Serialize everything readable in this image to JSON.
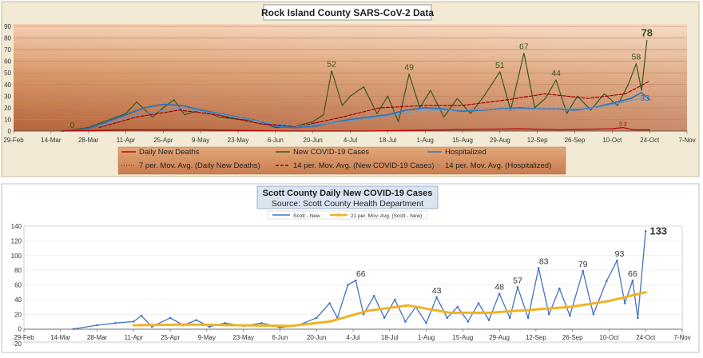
{
  "chart_data": [
    {
      "type": "line",
      "title": "Rock Island County SARS-CoV-2 Data",
      "x_tick_labels": [
        "29-Feb",
        "14-Mar",
        "28-Mar",
        "11-Apr",
        "25-Apr",
        "9-May",
        "23-May",
        "6-Jun",
        "20-Jun",
        "4-Jul",
        "18-Jul",
        "1-Aug",
        "15-Aug",
        "29-Aug",
        "12-Sep",
        "26-Sep",
        "10-Oct",
        "24-Oct",
        "7-Nov"
      ],
      "x_range": [
        "2020-02-29",
        "2020-11-07"
      ],
      "ylim": [
        0,
        90
      ],
      "y_ticks": [
        0,
        10,
        20,
        30,
        40,
        50,
        60,
        70,
        80,
        90
      ],
      "grid": true,
      "legend_position": "bottom",
      "legend": [
        {
          "label": "Daily New Deaths",
          "style": "solid",
          "color": "#c00000"
        },
        {
          "label": "New COVID-19 Cases",
          "style": "solid",
          "color": "#375623"
        },
        {
          "label": "Hospitalized",
          "style": "solid",
          "color": "#2e75b6"
        },
        {
          "label": "7 per. Mov. Avg. (Daily New Deaths)",
          "style": "dotted",
          "color": "#7f3f00"
        },
        {
          "label": "14 per. Mov. Avg. (New COVID-19 Cases)",
          "style": "dashed",
          "color": "#a00000"
        },
        {
          "label": "14 per. Mov. Avg. (Hospitalized)",
          "style": "dashed",
          "color": "#5b9bd5"
        }
      ],
      "annotations": [
        {
          "x": "2020-03-22",
          "y": 0,
          "text": "0"
        },
        {
          "x": "2020-06-27",
          "y": 52,
          "text": "52"
        },
        {
          "x": "2020-07-26",
          "y": 49,
          "text": "49"
        },
        {
          "x": "2020-08-29",
          "y": 51,
          "text": "51"
        },
        {
          "x": "2020-09-07",
          "y": 67,
          "text": "67"
        },
        {
          "x": "2020-09-19",
          "y": 44,
          "text": "44"
        },
        {
          "x": "2020-10-19",
          "y": 58,
          "text": "58"
        },
        {
          "x": "2020-10-23",
          "y": 78,
          "text": "78"
        },
        {
          "x": "2020-10-21",
          "y": 33,
          "text": "33"
        },
        {
          "x": "2020-10-14",
          "y": 3,
          "text": "3 3"
        }
      ],
      "series": [
        {
          "name": "New COVID-19 Cases",
          "points": [
            [
              "2020-03-18",
              0
            ],
            [
              "2020-03-28",
              3
            ],
            [
              "2020-04-04",
              9
            ],
            [
              "2020-04-11",
              15
            ],
            [
              "2020-04-15",
              25
            ],
            [
              "2020-04-21",
              12
            ],
            [
              "2020-04-25",
              20
            ],
            [
              "2020-04-29",
              27
            ],
            [
              "2020-05-03",
              14
            ],
            [
              "2020-05-09",
              18
            ],
            [
              "2020-05-16",
              12
            ],
            [
              "2020-05-23",
              10
            ],
            [
              "2020-05-30",
              9
            ],
            [
              "2020-06-06",
              3
            ],
            [
              "2020-06-13",
              4
            ],
            [
              "2020-06-20",
              8
            ],
            [
              "2020-06-24",
              14
            ],
            [
              "2020-06-27",
              52
            ],
            [
              "2020-07-01",
              22
            ],
            [
              "2020-07-04",
              30
            ],
            [
              "2020-07-09",
              38
            ],
            [
              "2020-07-14",
              15
            ],
            [
              "2020-07-18",
              30
            ],
            [
              "2020-07-22",
              8
            ],
            [
              "2020-07-26",
              49
            ],
            [
              "2020-07-30",
              20
            ],
            [
              "2020-08-03",
              35
            ],
            [
              "2020-08-08",
              12
            ],
            [
              "2020-08-13",
              28
            ],
            [
              "2020-08-18",
              15
            ],
            [
              "2020-08-23",
              30
            ],
            [
              "2020-08-29",
              51
            ],
            [
              "2020-09-02",
              18
            ],
            [
              "2020-09-07",
              67
            ],
            [
              "2020-09-11",
              20
            ],
            [
              "2020-09-15",
              28
            ],
            [
              "2020-09-19",
              44
            ],
            [
              "2020-09-23",
              15
            ],
            [
              "2020-09-27",
              30
            ],
            [
              "2020-10-02",
              18
            ],
            [
              "2020-10-07",
              32
            ],
            [
              "2020-10-12",
              22
            ],
            [
              "2020-10-16",
              40
            ],
            [
              "2020-10-19",
              58
            ],
            [
              "2020-10-21",
              35
            ],
            [
              "2020-10-23",
              78
            ]
          ]
        },
        {
          "name": "Hospitalized",
          "points": [
            [
              "2020-03-18",
              0
            ],
            [
              "2020-03-28",
              2
            ],
            [
              "2020-04-04",
              8
            ],
            [
              "2020-04-11",
              14
            ],
            [
              "2020-04-18",
              20
            ],
            [
              "2020-04-25",
              23
            ],
            [
              "2020-05-02",
              22
            ],
            [
              "2020-05-09",
              18
            ],
            [
              "2020-05-16",
              15
            ],
            [
              "2020-05-23",
              12
            ],
            [
              "2020-05-30",
              9
            ],
            [
              "2020-06-06",
              4
            ],
            [
              "2020-06-13",
              3
            ],
            [
              "2020-06-20",
              4
            ],
            [
              "2020-06-27",
              7
            ],
            [
              "2020-07-04",
              10
            ],
            [
              "2020-07-11",
              12
            ],
            [
              "2020-07-18",
              14
            ],
            [
              "2020-07-25",
              18
            ],
            [
              "2020-08-01",
              20
            ],
            [
              "2020-08-08",
              19
            ],
            [
              "2020-08-15",
              17
            ],
            [
              "2020-08-22",
              18
            ],
            [
              "2020-08-29",
              19
            ],
            [
              "2020-09-05",
              20
            ],
            [
              "2020-09-12",
              19
            ],
            [
              "2020-09-19",
              19
            ],
            [
              "2020-09-26",
              18
            ],
            [
              "2020-10-03",
              20
            ],
            [
              "2020-10-10",
              24
            ],
            [
              "2020-10-17",
              28
            ],
            [
              "2020-10-21",
              33
            ],
            [
              "2020-10-24",
              27
            ]
          ]
        },
        {
          "name": "Daily New Deaths",
          "points": [
            [
              "2020-03-18",
              0
            ],
            [
              "2020-04-10",
              1
            ],
            [
              "2020-05-10",
              1
            ],
            [
              "2020-06-10",
              0
            ],
            [
              "2020-07-10",
              0
            ],
            [
              "2020-08-10",
              1
            ],
            [
              "2020-09-05",
              2
            ],
            [
              "2020-09-20",
              1
            ],
            [
              "2020-10-10",
              2
            ],
            [
              "2020-10-14",
              3
            ],
            [
              "2020-10-18",
              1
            ],
            [
              "2020-10-24",
              1
            ]
          ]
        },
        {
          "name": "14 per. Mov. Avg. (New COVID-19 Cases)",
          "points": [
            [
              "2020-04-01",
              3
            ],
            [
              "2020-04-15",
              12
            ],
            [
              "2020-05-01",
              18
            ],
            [
              "2020-05-15",
              14
            ],
            [
              "2020-06-01",
              6
            ],
            [
              "2020-06-15",
              4
            ],
            [
              "2020-07-01",
              12
            ],
            [
              "2020-07-15",
              20
            ],
            [
              "2020-08-01",
              22
            ],
            [
              "2020-08-15",
              22
            ],
            [
              "2020-09-01",
              27
            ],
            [
              "2020-09-15",
              32
            ],
            [
              "2020-10-01",
              28
            ],
            [
              "2020-10-15",
              32
            ],
            [
              "2020-10-24",
              43
            ]
          ]
        },
        {
          "name": "14 per. Mov. Avg. (Hospitalized)",
          "points": [
            [
              "2020-04-01",
              4
            ],
            [
              "2020-04-15",
              14
            ],
            [
              "2020-05-01",
              20
            ],
            [
              "2020-05-15",
              15
            ],
            [
              "2020-06-01",
              8
            ],
            [
              "2020-06-15",
              4
            ],
            [
              "2020-07-01",
              8
            ],
            [
              "2020-07-15",
              12
            ],
            [
              "2020-08-01",
              18
            ],
            [
              "2020-08-15",
              18
            ],
            [
              "2020-09-01",
              19
            ],
            [
              "2020-09-15",
              19
            ],
            [
              "2020-10-01",
              19
            ],
            [
              "2020-10-15",
              25
            ],
            [
              "2020-10-24",
              30
            ]
          ]
        }
      ]
    },
    {
      "type": "line",
      "title": "Scott County Daily New COVID-19 Cases",
      "subtitle": "Source: Scott County Health Department",
      "x_tick_labels": [
        "29-Feb",
        "14-Mar",
        "28-Mar",
        "11-Apr",
        "25-Apr",
        "9-May",
        "23-May",
        "6-Jun",
        "20-Jun",
        "4-Jul",
        "18-Jul",
        "1-Aug",
        "15-Aug",
        "29-Aug",
        "12-Sep",
        "26-Sep",
        "10-Oct",
        "24-Oct",
        "7-Nov"
      ],
      "x_range": [
        "2020-02-29",
        "2020-11-07"
      ],
      "ylim": [
        -20,
        140
      ],
      "y_ticks": [
        -20,
        0,
        20,
        40,
        60,
        80,
        100,
        120,
        140
      ],
      "grid": true,
      "legend_position": "top",
      "legend": [
        {
          "label": "Scott - New",
          "color": "#4472c4"
        },
        {
          "label": "21 per. Mov. Avg. (Scott - New)",
          "color": "#f0b323"
        }
      ],
      "annotations": [
        {
          "x": "2020-07-07",
          "y": 66,
          "text": "66"
        },
        {
          "x": "2020-08-05",
          "y": 43,
          "text": "43"
        },
        {
          "x": "2020-08-29",
          "y": 48,
          "text": "48"
        },
        {
          "x": "2020-09-05",
          "y": 57,
          "text": "57"
        },
        {
          "x": "2020-09-15",
          "y": 83,
          "text": "83"
        },
        {
          "x": "2020-09-30",
          "y": 79,
          "text": "79"
        },
        {
          "x": "2020-10-14",
          "y": 93,
          "text": "93"
        },
        {
          "x": "2020-10-19",
          "y": 66,
          "text": "66"
        },
        {
          "x": "2020-10-24",
          "y": 133,
          "text": "133"
        }
      ],
      "series": [
        {
          "name": "Scott - New",
          "points": [
            [
              "2020-03-19",
              0
            ],
            [
              "2020-03-28",
              5
            ],
            [
              "2020-04-04",
              8
            ],
            [
              "2020-04-11",
              10
            ],
            [
              "2020-04-14",
              18
            ],
            [
              "2020-04-18",
              3
            ],
            [
              "2020-04-25",
              15
            ],
            [
              "2020-04-30",
              5
            ],
            [
              "2020-05-05",
              12
            ],
            [
              "2020-05-10",
              3
            ],
            [
              "2020-05-16",
              8
            ],
            [
              "2020-05-23",
              4
            ],
            [
              "2020-05-30",
              8
            ],
            [
              "2020-06-06",
              2
            ],
            [
              "2020-06-13",
              5
            ],
            [
              "2020-06-20",
              15
            ],
            [
              "2020-06-25",
              35
            ],
            [
              "2020-06-28",
              15
            ],
            [
              "2020-07-02",
              60
            ],
            [
              "2020-07-05",
              66
            ],
            [
              "2020-07-08",
              20
            ],
            [
              "2020-07-12",
              45
            ],
            [
              "2020-07-16",
              15
            ],
            [
              "2020-07-20",
              40
            ],
            [
              "2020-07-24",
              10
            ],
            [
              "2020-07-28",
              30
            ],
            [
              "2020-08-01",
              8
            ],
            [
              "2020-08-05",
              43
            ],
            [
              "2020-08-09",
              15
            ],
            [
              "2020-08-13",
              30
            ],
            [
              "2020-08-17",
              10
            ],
            [
              "2020-08-21",
              35
            ],
            [
              "2020-08-25",
              12
            ],
            [
              "2020-08-29",
              48
            ],
            [
              "2020-09-02",
              15
            ],
            [
              "2020-09-05",
              57
            ],
            [
              "2020-09-09",
              15
            ],
            [
              "2020-09-13",
              83
            ],
            [
              "2020-09-17",
              20
            ],
            [
              "2020-09-21",
              55
            ],
            [
              "2020-09-25",
              18
            ],
            [
              "2020-09-30",
              79
            ],
            [
              "2020-10-04",
              20
            ],
            [
              "2020-10-09",
              65
            ],
            [
              "2020-10-13",
              93
            ],
            [
              "2020-10-16",
              35
            ],
            [
              "2020-10-19",
              66
            ],
            [
              "2020-10-21",
              15
            ],
            [
              "2020-10-24",
              133
            ]
          ]
        },
        {
          "name": "21 per. Mov. Avg. (Scott - New)",
          "points": [
            [
              "2020-04-11",
              5
            ],
            [
              "2020-05-01",
              6
            ],
            [
              "2020-05-20",
              5
            ],
            [
              "2020-06-10",
              4
            ],
            [
              "2020-06-25",
              10
            ],
            [
              "2020-07-10",
              25
            ],
            [
              "2020-07-25",
              32
            ],
            [
              "2020-08-10",
              22
            ],
            [
              "2020-08-25",
              22
            ],
            [
              "2020-09-10",
              26
            ],
            [
              "2020-09-25",
              30
            ],
            [
              "2020-10-10",
              38
            ],
            [
              "2020-10-24",
              50
            ]
          ]
        }
      ]
    }
  ]
}
